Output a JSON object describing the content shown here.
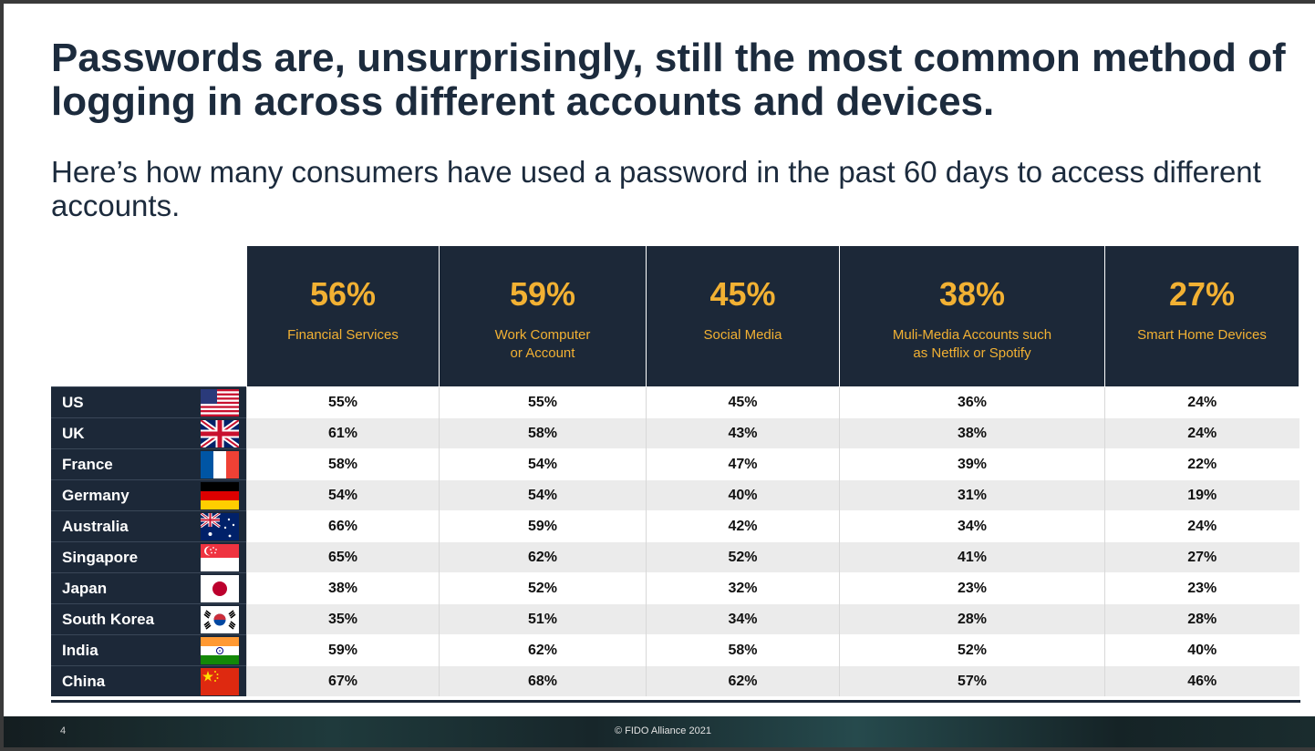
{
  "title": "Passwords are, unsurprisingly, still the most common method of logging in across different accounts and devices.",
  "subtitle": "Here’s how many consumers have used a password in the past 60 days to access different accounts.",
  "columns": [
    {
      "pct": "56%",
      "label": "Financial Services"
    },
    {
      "pct": "59%",
      "label": "Work Computer\nor Account"
    },
    {
      "pct": "45%",
      "label": "Social Media"
    },
    {
      "pct": "38%",
      "label": "Muli-Media Accounts such\nas Netflix or Spotify"
    },
    {
      "pct": "27%",
      "label": "Smart Home Devices"
    }
  ],
  "rows": [
    {
      "country": "US",
      "flag": "us-flag-icon",
      "values": [
        "55%",
        "55%",
        "45%",
        "36%",
        "24%"
      ]
    },
    {
      "country": "UK",
      "flag": "uk-flag-icon",
      "values": [
        "61%",
        "58%",
        "43%",
        "38%",
        "24%"
      ]
    },
    {
      "country": "France",
      "flag": "france-flag-icon",
      "values": [
        "58%",
        "54%",
        "47%",
        "39%",
        "22%"
      ]
    },
    {
      "country": "Germany",
      "flag": "germany-flag-icon",
      "values": [
        "54%",
        "54%",
        "40%",
        "31%",
        "19%"
      ]
    },
    {
      "country": "Australia",
      "flag": "australia-flag-icon",
      "values": [
        "66%",
        "59%",
        "42%",
        "34%",
        "24%"
      ]
    },
    {
      "country": "Singapore",
      "flag": "singapore-flag-icon",
      "values": [
        "65%",
        "62%",
        "52%",
        "41%",
        "27%"
      ]
    },
    {
      "country": "Japan",
      "flag": "japan-flag-icon",
      "values": [
        "38%",
        "52%",
        "32%",
        "23%",
        "23%"
      ]
    },
    {
      "country": "South Korea",
      "flag": "south-korea-flag-icon",
      "values": [
        "35%",
        "51%",
        "34%",
        "28%",
        "28%"
      ]
    },
    {
      "country": "India",
      "flag": "india-flag-icon",
      "values": [
        "59%",
        "62%",
        "58%",
        "52%",
        "40%"
      ]
    },
    {
      "country": "China",
      "flag": "china-flag-icon",
      "values": [
        "67%",
        "68%",
        "62%",
        "57%",
        "46%"
      ]
    }
  ],
  "footer": {
    "page_number": "4",
    "copyright": "© FIDO Alliance 2021"
  }
}
